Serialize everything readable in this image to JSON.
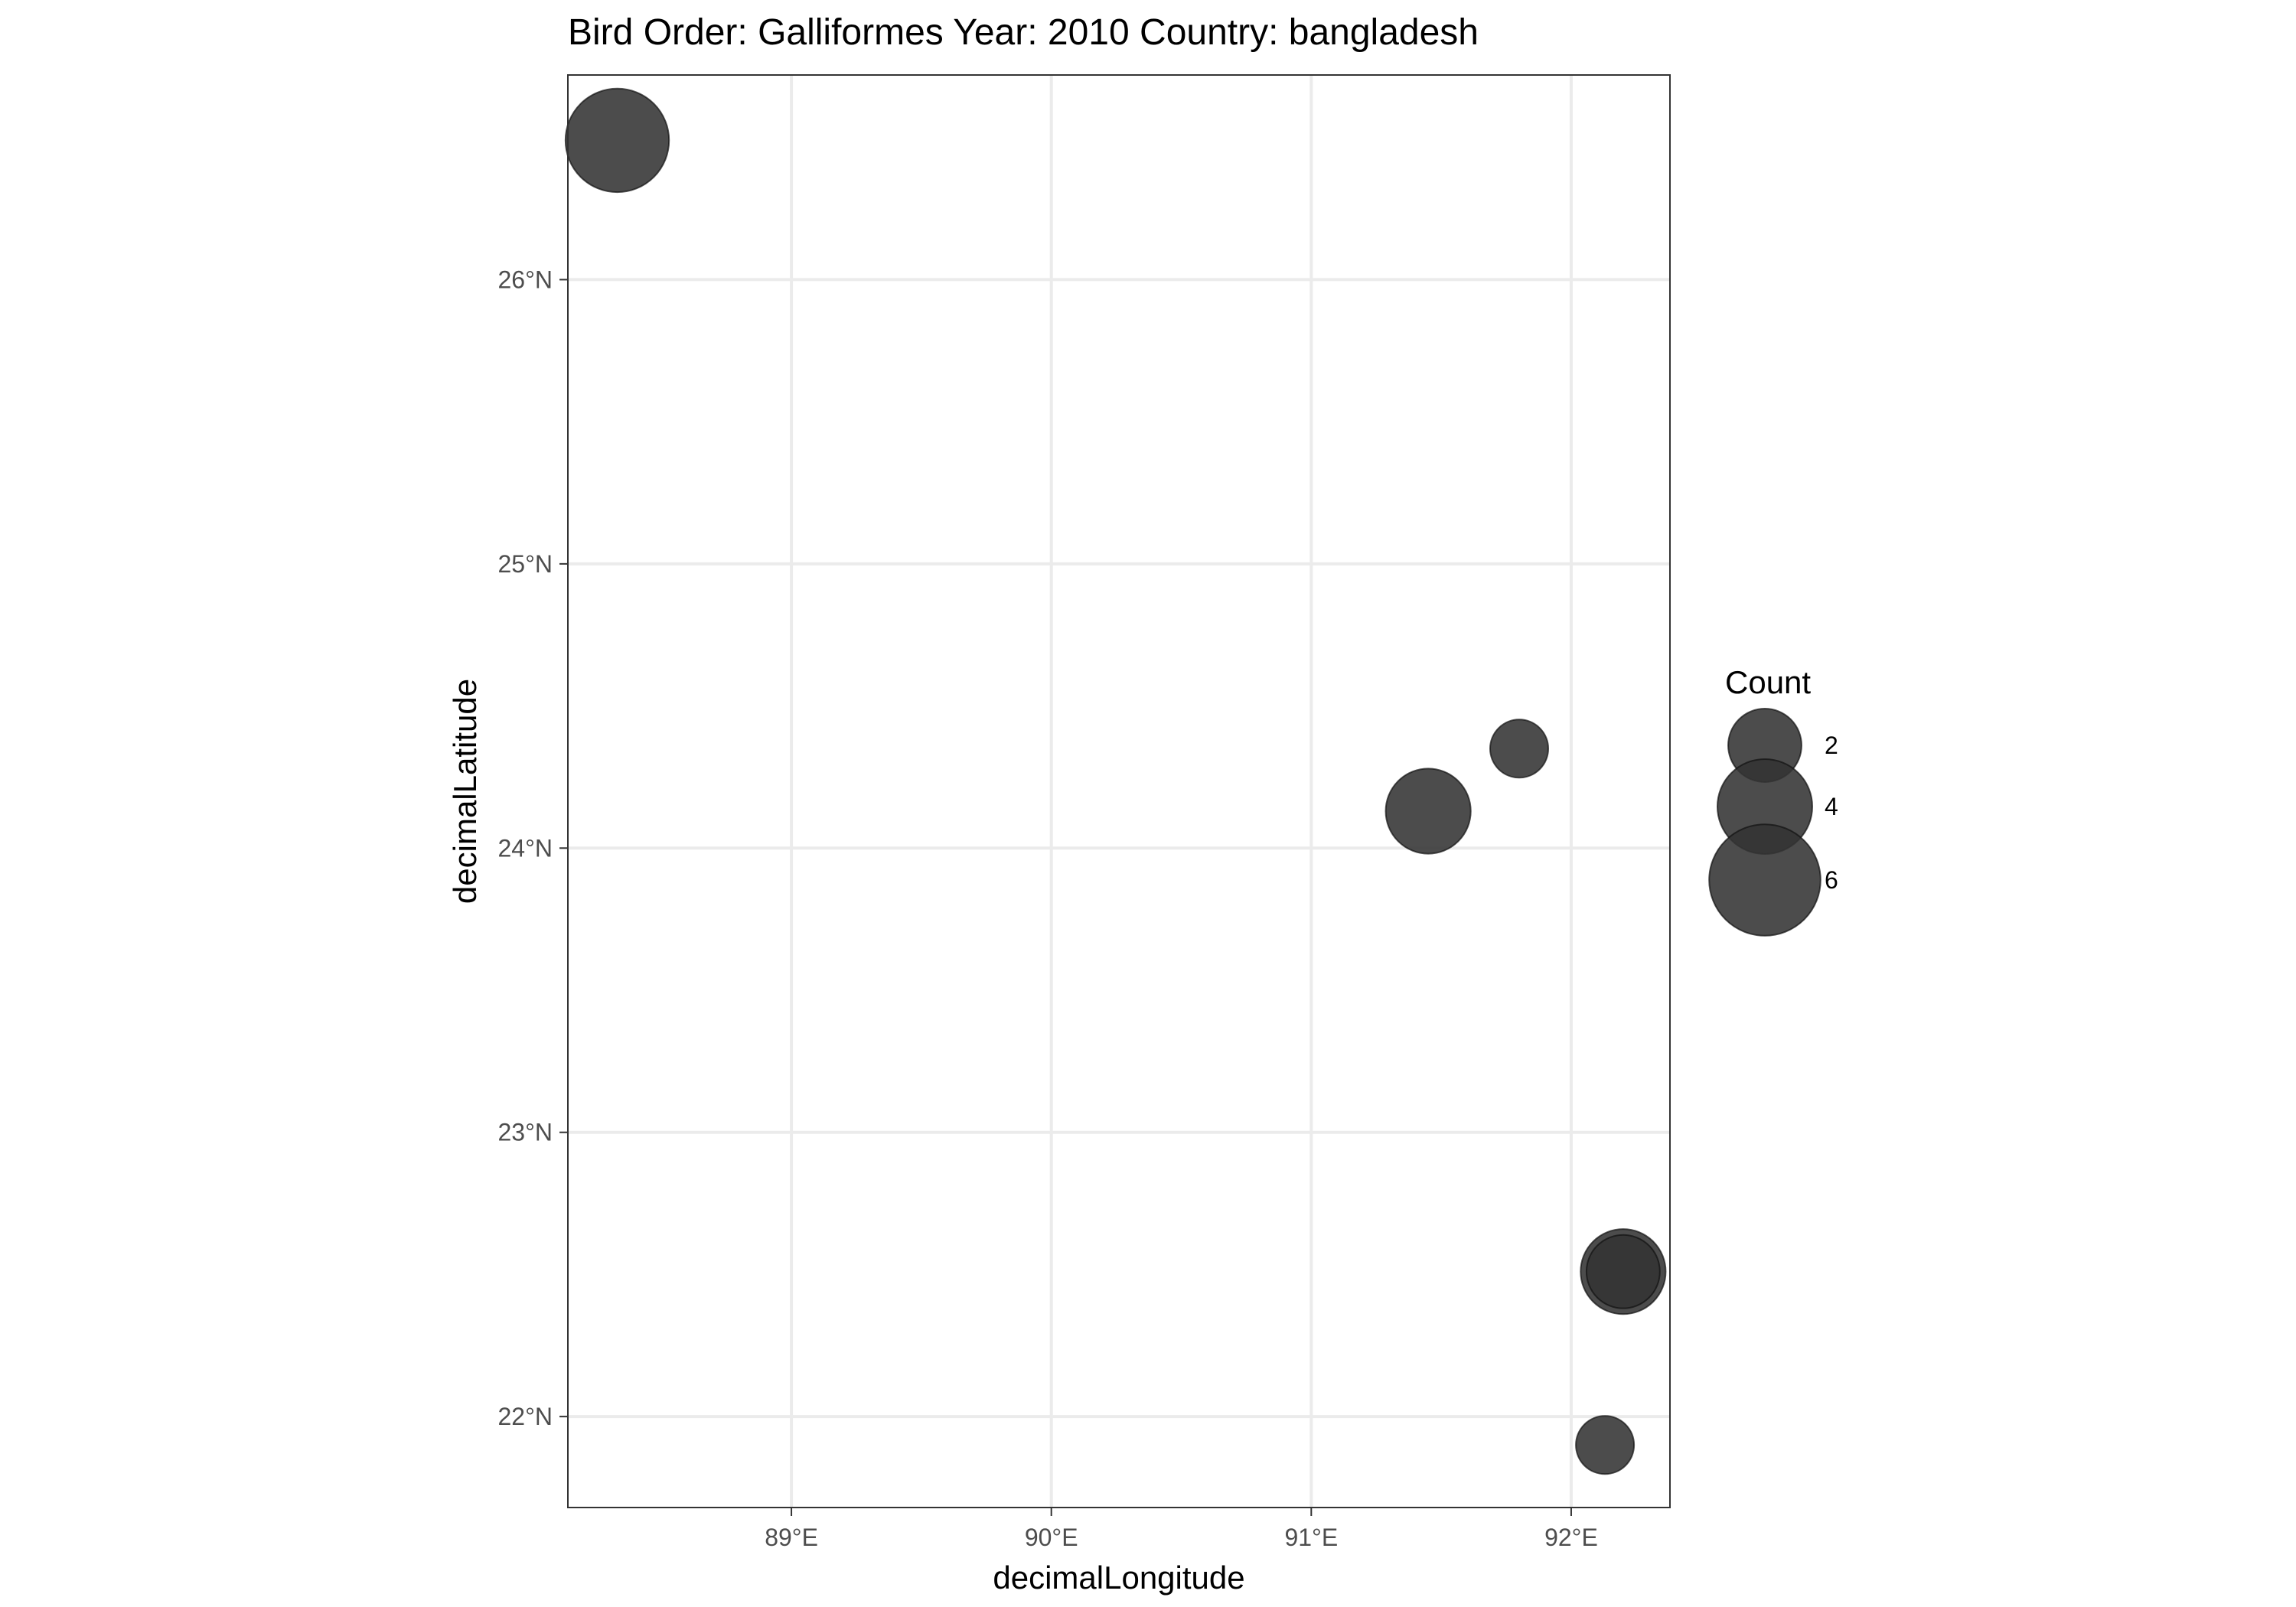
{
  "chart_data": {
    "type": "scatter",
    "title": "Bird Order: Galliformes Year: 2010 Country: bangladesh",
    "xlabel": "decimalLongitude",
    "ylabel": "decimalLatitude",
    "xlim": [
      88.14,
      92.38
    ],
    "ylim": [
      21.68,
      26.72
    ],
    "x_ticks": [
      89,
      90,
      91,
      92
    ],
    "x_tick_labels": [
      "89°E",
      "90°E",
      "91°E",
      "92°E"
    ],
    "y_ticks": [
      22,
      23,
      24,
      25,
      26
    ],
    "y_tick_labels": [
      "22°N",
      "23°N",
      "24°N",
      "25°N",
      "26°N"
    ],
    "grid": true,
    "points": [
      {
        "x": 88.33,
        "y": 26.49,
        "count": 5
      },
      {
        "x": 91.45,
        "y": 24.13,
        "count": 3
      },
      {
        "x": 91.8,
        "y": 24.35,
        "count": 1
      },
      {
        "x": 92.2,
        "y": 22.51,
        "count": 3
      },
      {
        "x": 92.2,
        "y": 22.51,
        "count": 2
      },
      {
        "x": 92.13,
        "y": 21.9,
        "count": 1
      }
    ],
    "point_color": "#333333",
    "point_opacity": 0.88,
    "legend": {
      "title": "Count",
      "placement": "right",
      "entries": [
        {
          "value": 2,
          "label": "2"
        },
        {
          "value": 4,
          "label": "4"
        },
        {
          "value": 6,
          "label": "6"
        }
      ]
    }
  }
}
